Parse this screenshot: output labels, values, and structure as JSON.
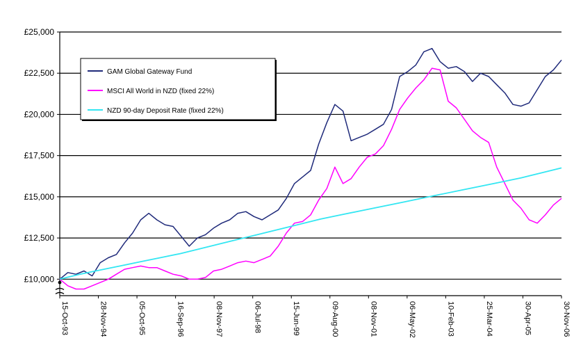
{
  "chart_data": {
    "type": "line",
    "title": "",
    "xlabel": "",
    "ylabel": "",
    "ylim": [
      9000,
      25000
    ],
    "y_axis_break": true,
    "yticks": [
      "£10,000",
      "£12,500",
      "£15,000",
      "£17,500",
      "£20,000",
      "£22,500",
      "£25,000"
    ],
    "ytick_values": [
      10000,
      12500,
      15000,
      17500,
      20000,
      22500,
      25000
    ],
    "x_tick_labels": [
      "15-Oct-93",
      "28-Nov-94",
      "05-Oct-95",
      "16-Sep-96",
      "08-Nov-97",
      "06-Jul-98",
      "15-Jun-99",
      "09-Aug-00",
      "08-Nov-01",
      "06-May-02",
      "10-Feb-03",
      "25-Mar-04",
      "30-Apr-05",
      "30-Nov-06"
    ],
    "legend_position": "top-left",
    "grid": "horizontal",
    "series": [
      {
        "name": "GAM Global Gateway Fund",
        "color": "#1f2a7a",
        "values": [
          10000,
          10400,
          10300,
          10500,
          10200,
          11000,
          11300,
          11500,
          12200,
          12800,
          13600,
          14000,
          13600,
          13300,
          13200,
          12600,
          12000,
          12500,
          12700,
          13100,
          13400,
          13600,
          14000,
          14100,
          13800,
          13600,
          13900,
          14200,
          14900,
          15800,
          16200,
          16600,
          18200,
          19500,
          20600,
          20200,
          18400,
          18600,
          18800,
          19100,
          19400,
          20300,
          22300,
          22600,
          23000,
          23800,
          24000,
          23200,
          22800,
          22900,
          22600,
          22000,
          22500,
          22300,
          21800,
          21300,
          20600,
          20500,
          20700,
          21500,
          22300,
          22700,
          23300
        ]
      },
      {
        "name": "MSCI All World in NZD (fixed 22%)",
        "color": "#ff00ff",
        "values": [
          10000,
          9600,
          9400,
          9400,
          9600,
          9800,
          10000,
          10300,
          10600,
          10700,
          10800,
          10700,
          10700,
          10500,
          10300,
          10200,
          10000,
          10000,
          10100,
          10500,
          10600,
          10800,
          11000,
          11100,
          11000,
          11200,
          11400,
          12000,
          12800,
          13400,
          13500,
          13900,
          14800,
          15500,
          16800,
          15800,
          16100,
          16800,
          17400,
          17600,
          18100,
          19100,
          20300,
          21000,
          21600,
          22100,
          22800,
          22700,
          20800,
          20400,
          19700,
          19000,
          18600,
          18300,
          16800,
          15800,
          14800,
          14300,
          13600,
          13400,
          13900,
          14500,
          14900
        ]
      },
      {
        "name": "NZD 90-day Deposit Rate (fixed 22%)",
        "color": "#33e6f2",
        "values": [
          10000,
          10300,
          10550,
          10800,
          11050,
          11300,
          11550,
          11850,
          12150,
          12450,
          12750,
          13050,
          13350,
          13650,
          13900,
          14150,
          14400,
          14650,
          14900,
          15150,
          15400,
          15650,
          15900,
          16150,
          16450,
          16750
        ]
      }
    ]
  }
}
